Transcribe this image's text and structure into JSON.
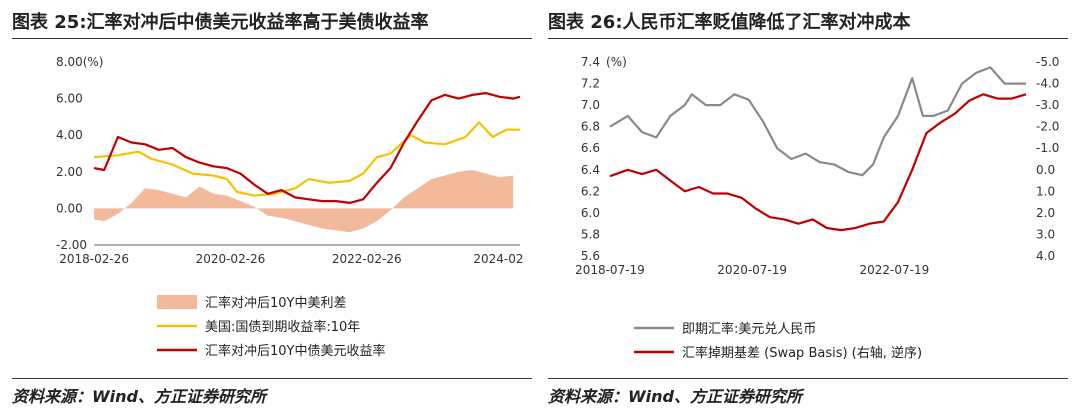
{
  "left": {
    "figure_title": "图表 25:汇率对冲后中债美元收益率高于美债收益率",
    "source": "资料来源：Wind、方正证券研究所",
    "legend": [
      {
        "label": "汇率对冲后10Y中美利差",
        "color": "#f2b99b",
        "kind": "area"
      },
      {
        "label": "美国:国债到期收益率:10年",
        "color": "#f5c200",
        "kind": "line"
      },
      {
        "label": "汇率对冲后10Y中债美元收益率",
        "color": "#c00000",
        "kind": "line"
      }
    ]
  },
  "right": {
    "figure_title": "图表 26:人民币汇率贬值降低了汇率对冲成本",
    "source": "资料来源：Wind、方正证券研究所",
    "legend": [
      {
        "label": "即期汇率:美元兑人民币",
        "color": "#8a8a8a",
        "kind": "line"
      },
      {
        "label": "汇率掉期基差 (Swap Basis) (右轴, 逆序)",
        "color": "#c00000",
        "kind": "line"
      }
    ]
  },
  "chart_data": [
    {
      "type": "line",
      "y_unit_label": "8.00(%)",
      "ylim": [
        -2,
        8
      ],
      "y_ticks": [
        "-2.00",
        "0.00",
        "2.00",
        "4.00",
        "6.00",
        "8.00"
      ],
      "x_ticks": [
        "2018-02-26",
        "2020-02-26",
        "2022-02-26",
        "2024-02"
      ],
      "x_range": [
        2018.15,
        2024.4
      ],
      "grid": false,
      "legend_position": "bottom",
      "series": [
        {
          "name": "汇率对冲后10Y中美利差",
          "type": "area",
          "x": [
            2018.15,
            2018.3,
            2018.5,
            2018.7,
            2018.9,
            2019.1,
            2019.3,
            2019.5,
            2019.7,
            2019.9,
            2020.1,
            2020.3,
            2020.5,
            2020.7,
            2020.9,
            2021.1,
            2021.3,
            2021.5,
            2021.7,
            2021.9,
            2022.1,
            2022.3,
            2022.5,
            2022.7,
            2022.9,
            2023.1,
            2023.3,
            2023.5,
            2023.7,
            2023.9,
            2024.1,
            2024.3
          ],
          "y": [
            -0.6,
            -0.7,
            -0.3,
            0.3,
            1.1,
            1.0,
            0.8,
            0.6,
            1.2,
            0.8,
            0.7,
            0.4,
            0.1,
            -0.4,
            -0.5,
            -0.7,
            -0.9,
            -1.1,
            -1.2,
            -1.3,
            -1.1,
            -0.7,
            -0.1,
            0.6,
            1.1,
            1.6,
            1.8,
            2.0,
            2.1,
            1.9,
            1.7,
            1.8
          ]
        },
        {
          "name": "美国:国债到期收益率:10年",
          "type": "line",
          "x": [
            2018.15,
            2018.5,
            2018.8,
            2019.0,
            2019.3,
            2019.6,
            2019.9,
            2020.1,
            2020.25,
            2020.5,
            2020.8,
            2021.1,
            2021.3,
            2021.6,
            2021.9,
            2022.1,
            2022.3,
            2022.5,
            2022.8,
            2023.0,
            2023.3,
            2023.6,
            2023.8,
            2024.0,
            2024.2,
            2024.4
          ],
          "y": [
            2.8,
            2.9,
            3.1,
            2.7,
            2.4,
            1.9,
            1.8,
            1.6,
            0.9,
            0.7,
            0.8,
            1.1,
            1.6,
            1.4,
            1.5,
            1.9,
            2.8,
            3.0,
            4.0,
            3.6,
            3.5,
            3.9,
            4.7,
            3.9,
            4.3,
            4.3
          ]
        },
        {
          "name": "汇率对冲后10Y中债美元收益率",
          "type": "line",
          "x": [
            2018.15,
            2018.3,
            2018.5,
            2018.7,
            2018.9,
            2019.1,
            2019.3,
            2019.5,
            2019.7,
            2019.9,
            2020.1,
            2020.3,
            2020.5,
            2020.7,
            2020.9,
            2021.1,
            2021.3,
            2021.5,
            2021.7,
            2021.9,
            2022.1,
            2022.3,
            2022.5,
            2022.7,
            2022.9,
            2023.1,
            2023.3,
            2023.5,
            2023.7,
            2023.9,
            2024.1,
            2024.3,
            2024.4
          ],
          "y": [
            2.2,
            2.1,
            3.9,
            3.6,
            3.5,
            3.2,
            3.3,
            2.8,
            2.5,
            2.3,
            2.2,
            1.9,
            1.3,
            0.8,
            1.0,
            0.6,
            0.5,
            0.4,
            0.4,
            0.3,
            0.5,
            1.4,
            2.2,
            3.6,
            4.8,
            5.9,
            6.2,
            6.0,
            6.2,
            6.3,
            6.1,
            6.0,
            6.1
          ]
        }
      ]
    },
    {
      "type": "line",
      "y_unit_label": "(%)",
      "ylim": [
        5.6,
        7.4
      ],
      "y_ticks": [
        "5.6",
        "5.8",
        "6.0",
        "6.2",
        "6.4",
        "6.6",
        "6.8",
        "7.0",
        "7.2",
        "7.4"
      ],
      "y2lim": [
        4.0,
        -5.0
      ],
      "y2_ticks": [
        "4.0",
        "3.0",
        "2.0",
        "1.0",
        "0.0",
        "-1.0",
        "-2.0",
        "-3.0",
        "-4.0",
        "-5.0"
      ],
      "y2_reversed": true,
      "x_ticks": [
        "2018-07-19",
        "2020-07-19",
        "2022-07-19"
      ],
      "x_range": [
        2018.55,
        2024.4
      ],
      "grid": false,
      "legend_position": "bottom",
      "series": [
        {
          "name": "即期汇率:美元兑人民币",
          "axis": "left",
          "x": [
            2018.55,
            2018.8,
            2019.0,
            2019.2,
            2019.4,
            2019.6,
            2019.7,
            2019.9,
            2020.1,
            2020.3,
            2020.5,
            2020.7,
            2020.9,
            2021.1,
            2021.3,
            2021.5,
            2021.7,
            2021.9,
            2022.1,
            2022.25,
            2022.4,
            2022.6,
            2022.8,
            2022.95,
            2023.1,
            2023.3,
            2023.5,
            2023.7,
            2023.9,
            2024.1,
            2024.3,
            2024.4
          ],
          "y": [
            6.8,
            6.9,
            6.75,
            6.7,
            6.9,
            7.0,
            7.1,
            7.0,
            7.0,
            7.1,
            7.05,
            6.85,
            6.6,
            6.5,
            6.55,
            6.47,
            6.45,
            6.38,
            6.35,
            6.45,
            6.7,
            6.9,
            7.25,
            6.9,
            6.9,
            6.95,
            7.2,
            7.3,
            7.35,
            7.2,
            7.2,
            7.2
          ]
        },
        {
          "name": "汇率掉期基差 (Swap Basis) (右轴, 逆序)",
          "axis": "right",
          "x": [
            2018.55,
            2018.8,
            2019.0,
            2019.2,
            2019.4,
            2019.6,
            2019.8,
            2020.0,
            2020.2,
            2020.4,
            2020.6,
            2020.8,
            2021.0,
            2021.2,
            2021.4,
            2021.6,
            2021.8,
            2022.0,
            2022.2,
            2022.4,
            2022.6,
            2022.8,
            2023.0,
            2023.2,
            2023.4,
            2023.6,
            2023.8,
            2024.0,
            2024.2,
            2024.4
          ],
          "y": [
            0.3,
            0.0,
            0.2,
            0.0,
            0.5,
            1.0,
            0.8,
            1.1,
            1.1,
            1.3,
            1.8,
            2.2,
            2.3,
            2.5,
            2.3,
            2.7,
            2.8,
            2.7,
            2.5,
            2.4,
            1.5,
            0.0,
            -1.7,
            -2.2,
            -2.6,
            -3.2,
            -3.5,
            -3.3,
            -3.3,
            -3.5
          ]
        }
      ]
    }
  ]
}
